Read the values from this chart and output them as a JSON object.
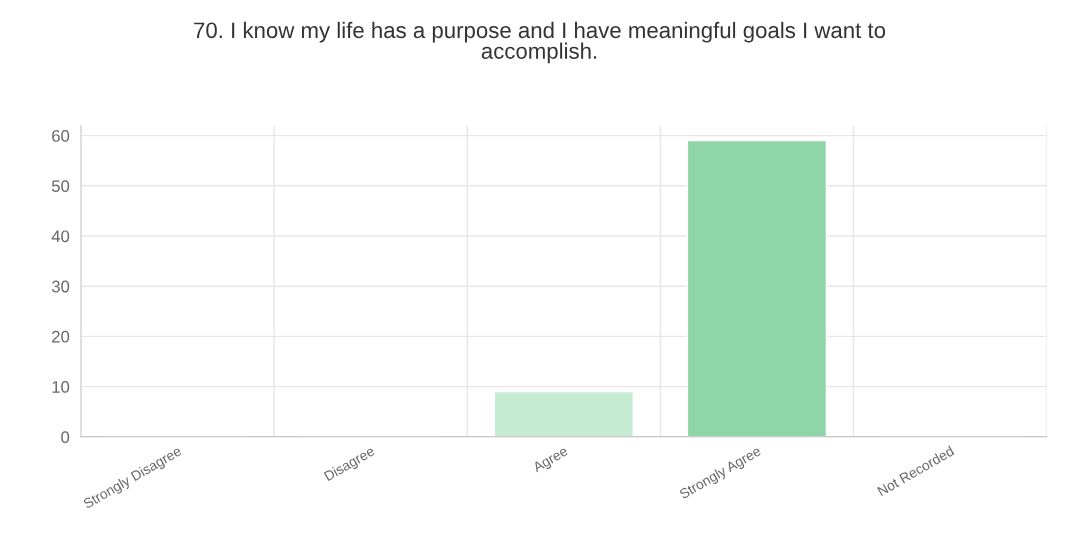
{
  "chart_data": {
    "type": "bar",
    "title": "70. I know my life has a purpose and I have meaningful goals I want to\naccomplish.",
    "categories": [
      "Strongly Disagree",
      "Disagree",
      "Agree",
      "Strongly Agree",
      "Not Recorded"
    ],
    "values": [
      0,
      0,
      9,
      59,
      0
    ],
    "colors": [
      null,
      null,
      "#c6ebd3",
      "#8ed6a8",
      null
    ],
    "ylim": [
      0,
      62
    ],
    "yticks": [
      0,
      10,
      20,
      30,
      40,
      50,
      60
    ],
    "grid": true
  }
}
